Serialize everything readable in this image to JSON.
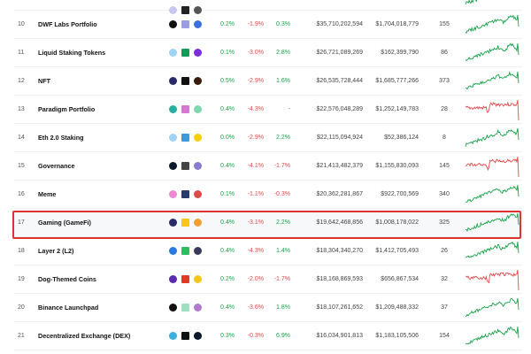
{
  "colors": {
    "positive": "#16a34a",
    "negative": "#e5484d",
    "highlight_border": "#e0332f"
  },
  "rows": [
    {
      "rank": "",
      "name": "",
      "icons": [
        "#c9c6f0",
        "#222",
        "#555"
      ],
      "h1": "",
      "h24": "",
      "d7": "",
      "market_cap": "",
      "volume": "",
      "coins": "",
      "trend": "up",
      "partial": true
    },
    {
      "rank": "10",
      "name": "DWF Labs Portfolio",
      "icons": [
        "#111",
        "#9b9fe0",
        "#3b6fe0"
      ],
      "h1": "0.2%",
      "h24": "-1.9%",
      "d7": "0.3%",
      "market_cap": "$35,710,202,594",
      "volume": "$1,704,018,779",
      "coins": "155",
      "trend": "up"
    },
    {
      "rank": "11",
      "name": "Liquid Staking Tokens",
      "icons": [
        "#9fd3f5",
        "#0f9d58",
        "#7b2ee0"
      ],
      "h1": "0.1%",
      "h24": "-3.0%",
      "d7": "2.8%",
      "market_cap": "$26,721,089,269",
      "volume": "$162,399,790",
      "coins": "86",
      "trend": "up"
    },
    {
      "rank": "12",
      "name": "NFT",
      "icons": [
        "#2a2a6a",
        "#111",
        "#3a1a0a"
      ],
      "h1": "0.5%",
      "h24": "-2.9%",
      "d7": "1.6%",
      "market_cap": "$26,535,728,444",
      "volume": "$1,685,777,266",
      "coins": "373",
      "trend": "up"
    },
    {
      "rank": "13",
      "name": "Paradigm Portfolio",
      "icons": [
        "#2ab0a0",
        "#d07ad0",
        "#7fd8b0"
      ],
      "h1": "0.4%",
      "h24": "-4.3%",
      "d7": "-",
      "market_cap": "$22,576,048,289",
      "volume": "$1,252,149,783",
      "coins": "28",
      "trend": "down"
    },
    {
      "rank": "14",
      "name": "Eth 2.0 Staking",
      "icons": [
        "#9fd3f5",
        "#3b9be0",
        "#f5d000"
      ],
      "h1": "0.0%",
      "h24": "-2.9%",
      "d7": "2.2%",
      "market_cap": "$22,115,094,924",
      "volume": "$52,386,124",
      "coins": "8",
      "trend": "up"
    },
    {
      "rank": "15",
      "name": "Governance",
      "icons": [
        "#0a1a2a",
        "#444",
        "#8a7ad0"
      ],
      "h1": "0.4%",
      "h24": "-4.1%",
      "d7": "-1.7%",
      "market_cap": "$21,413,482,379",
      "volume": "$1,155,830,093",
      "coins": "145",
      "trend": "down"
    },
    {
      "rank": "16",
      "name": "Meme",
      "icons": [
        "#f08ad0",
        "#2a3a6a",
        "#e04a4a"
      ],
      "h1": "0.1%",
      "h24": "-1.1%",
      "d7": "-0.3%",
      "market_cap": "$20,362,281,867",
      "volume": "$922,700,569",
      "coins": "340",
      "trend": "up"
    },
    {
      "rank": "17",
      "name": "Gaming (GameFi)",
      "icons": [
        "#2a2a6a",
        "#f5c518",
        "#f0a030"
      ],
      "h1": "0.4%",
      "h24": "-3.1%",
      "d7": "2.2%",
      "market_cap": "$19,642,468,856",
      "volume": "$1,008,178,022",
      "coins": "325",
      "trend": "up",
      "highlighted": true
    },
    {
      "rank": "18",
      "name": "Layer 2 (L2)",
      "icons": [
        "#2a7ae0",
        "#2ac060",
        "#3a3a5a"
      ],
      "h1": "0.4%",
      "h24": "-4.3%",
      "d7": "1.4%",
      "market_cap": "$18,304,340,270",
      "volume": "$1,412,705,493",
      "coins": "26",
      "trend": "up"
    },
    {
      "rank": "19",
      "name": "Dog-Themed Coins",
      "icons": [
        "#5a2ab0",
        "#e03a2a",
        "#f5c518"
      ],
      "h1": "0.2%",
      "h24": "-2.0%",
      "d7": "-1.7%",
      "market_cap": "$18,168,869,593",
      "volume": "$656,867,534",
      "coins": "32",
      "trend": "down"
    },
    {
      "rank": "20",
      "name": "Binance Launchpad",
      "icons": [
        "#111",
        "#a0e0c0",
        "#b07ad0"
      ],
      "h1": "0.4%",
      "h24": "-3.6%",
      "d7": "1.8%",
      "market_cap": "$18,107,261,652",
      "volume": "$1,209,488,332",
      "coins": "37",
      "trend": "up"
    },
    {
      "rank": "21",
      "name": "Decentralized Exchange (DEX)",
      "icons": [
        "#3ab0e0",
        "#111",
        "#0a1a2a"
      ],
      "h1": "0.3%",
      "h24": "-0.3%",
      "d7": "6.9%",
      "market_cap": "$16,034,901,813",
      "volume": "$1,183,105,506",
      "coins": "154",
      "trend": "up"
    }
  ]
}
